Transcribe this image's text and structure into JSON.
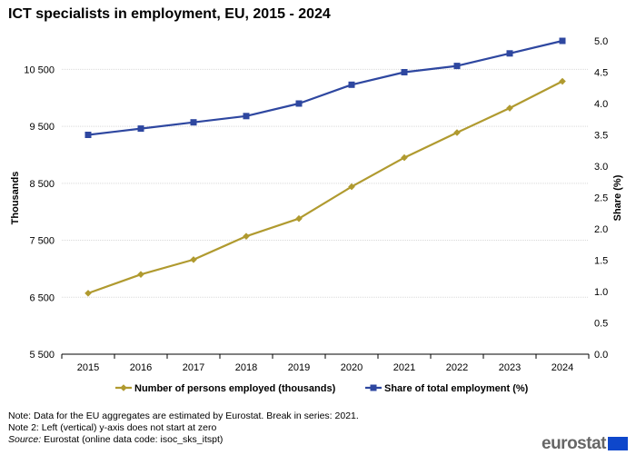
{
  "chart_data": {
    "type": "line",
    "title": "ICT specialists in employment, EU, 2015 - 2024",
    "categories": [
      "2015",
      "2016",
      "2017",
      "2018",
      "2019",
      "2020",
      "2021",
      "2022",
      "2023",
      "2024"
    ],
    "series": [
      {
        "name": "Number of persons employed (thousands)",
        "axis": "left",
        "color": "#b09a2f",
        "marker": "diamond",
        "values": [
          6570,
          6900,
          7160,
          7570,
          7880,
          8440,
          8950,
          9390,
          9820,
          10290
        ]
      },
      {
        "name": "Share of total employment (%)",
        "axis": "right",
        "color": "#2e47a0",
        "marker": "square",
        "values": [
          3.5,
          3.6,
          3.7,
          3.8,
          4.0,
          4.3,
          4.5,
          4.6,
          4.8,
          5.0
        ]
      }
    ],
    "left_axis": {
      "label": "Thousands",
      "range": [
        5500,
        11000
      ],
      "ticks": [
        5500,
        6500,
        7500,
        8500,
        9500,
        10500
      ],
      "tick_labels": [
        "5 500",
        "6 500",
        "7 500",
        "8 500",
        "9 500",
        "10 500"
      ]
    },
    "right_axis": {
      "label": "Share (%)",
      "range": [
        0,
        5.0
      ],
      "ticks": [
        0,
        0.5,
        1.0,
        1.5,
        2.0,
        2.5,
        3.0,
        3.5,
        4.0,
        4.5,
        5.0
      ],
      "tick_labels": [
        "0.0",
        "0.5",
        "1.0",
        "1.5",
        "2.0",
        "2.5",
        "3.0",
        "3.5",
        "4.0",
        "4.5",
        "5.0"
      ]
    },
    "grid": "horizontal",
    "legend": "bottom"
  },
  "notes": [
    "Note: Data for the EU aggregates are estimated by Eurostat. Break in series: 2021.",
    "Note 2: Left (vertical) y-axis does not start at zero"
  ],
  "source": {
    "label": "Source:",
    "text": " Eurostat (online data code: isoc_sks_itspt)"
  },
  "logo_text": "eurostat"
}
